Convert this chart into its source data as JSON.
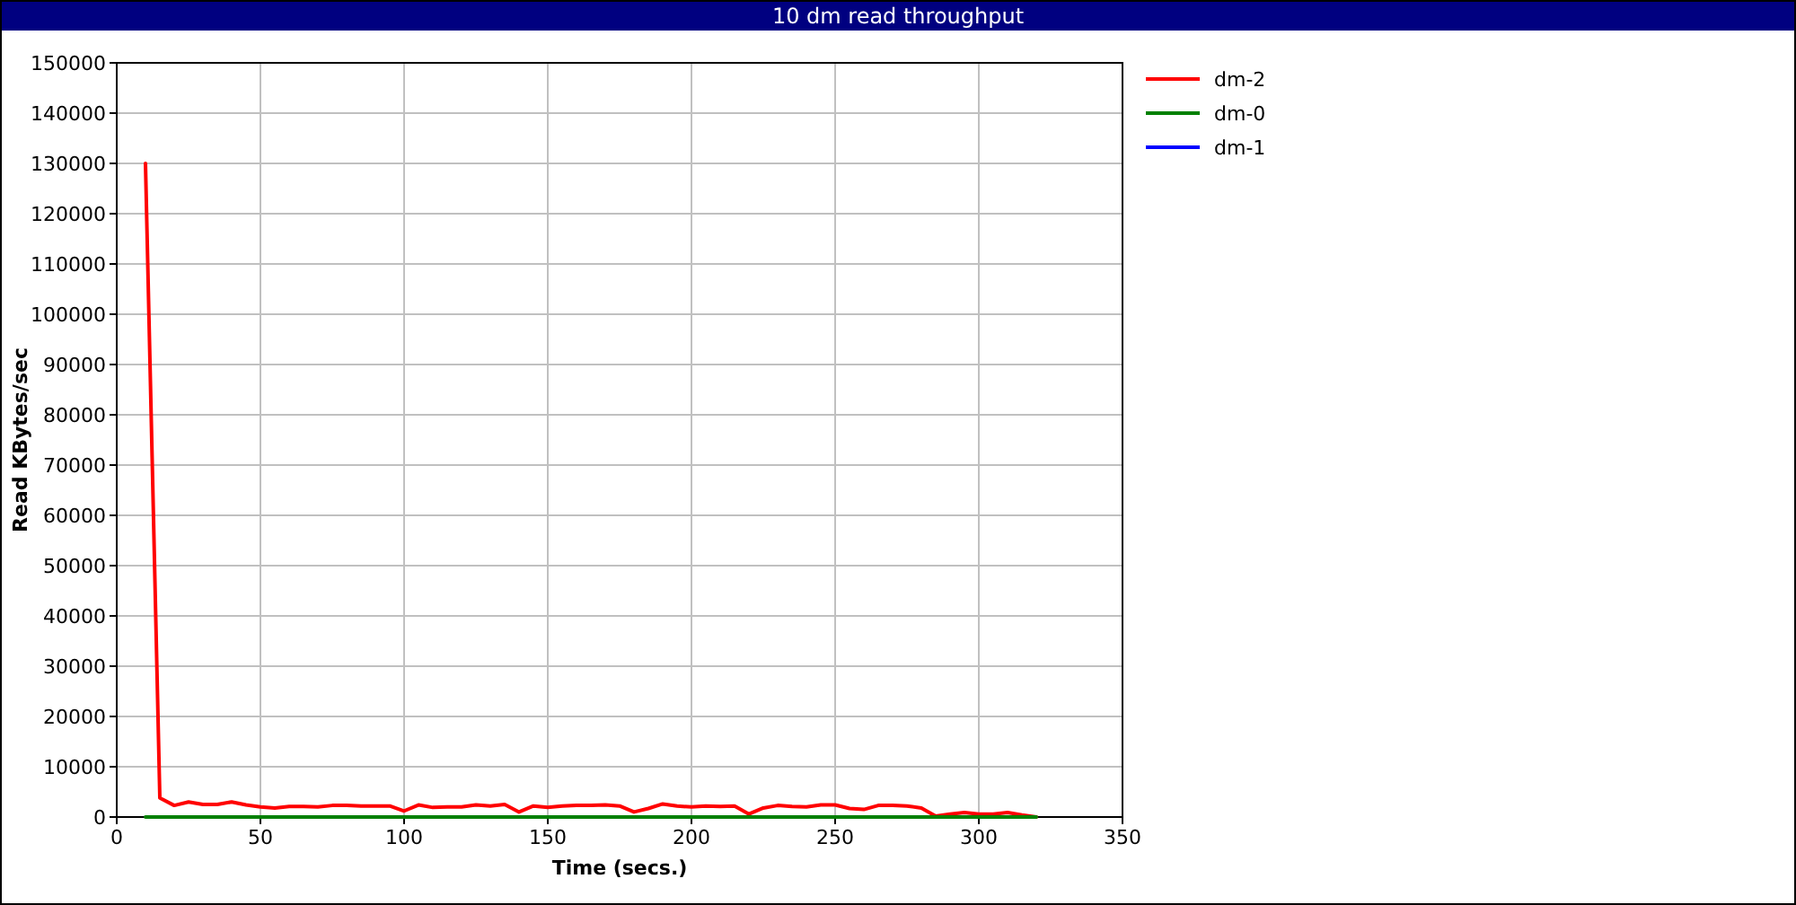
{
  "chart_data": {
    "type": "line",
    "title": "10 dm read throughput",
    "xlabel": "Time (secs.)",
    "ylabel": "Read KBytes/sec",
    "x": [
      10,
      15,
      20,
      25,
      30,
      35,
      40,
      45,
      50,
      55,
      60,
      65,
      70,
      75,
      80,
      85,
      90,
      95,
      100,
      105,
      110,
      115,
      120,
      125,
      130,
      135,
      140,
      145,
      150,
      155,
      160,
      165,
      170,
      175,
      180,
      185,
      190,
      195,
      200,
      205,
      210,
      215,
      220,
      225,
      230,
      235,
      240,
      245,
      250,
      255,
      260,
      265,
      270,
      275,
      280,
      285,
      290,
      295,
      300,
      305,
      310,
      315,
      320
    ],
    "series": [
      {
        "name": "dm-2",
        "color": "#ff0000",
        "values": [
          130000,
          3800,
          2300,
          3000,
          2500,
          2500,
          3000,
          2400,
          2000,
          1800,
          2100,
          2100,
          2000,
          2300,
          2300,
          2200,
          2200,
          2200,
          1200,
          2400,
          1900,
          2000,
          2000,
          2400,
          2200,
          2500,
          1000,
          2200,
          1900,
          2200,
          2300,
          2300,
          2400,
          2200,
          1000,
          1700,
          2600,
          2200,
          2000,
          2200,
          2100,
          2200,
          600,
          1800,
          2300,
          2100,
          2000,
          2400,
          2400,
          1700,
          1500,
          2300,
          2300,
          2200,
          1800,
          200,
          600,
          900,
          600,
          600,
          900,
          400,
          0
        ]
      },
      {
        "name": "dm-0",
        "color": "#008000",
        "values": [
          0,
          0,
          0,
          0,
          0,
          0,
          0,
          0,
          0,
          0,
          0,
          0,
          0,
          0,
          0,
          0,
          0,
          0,
          0,
          0,
          0,
          0,
          0,
          0,
          0,
          0,
          0,
          0,
          0,
          0,
          0,
          0,
          0,
          0,
          0,
          0,
          0,
          0,
          0,
          0,
          0,
          0,
          0,
          0,
          0,
          0,
          0,
          0,
          0,
          0,
          0,
          0,
          0,
          0,
          0,
          0,
          0,
          0,
          0,
          0,
          0,
          0,
          0
        ]
      },
      {
        "name": "dm-1",
        "color": "#0000ff",
        "values": [
          null,
          null,
          null,
          null,
          null,
          null,
          null,
          null,
          null,
          null,
          null,
          null,
          null,
          null,
          null,
          null,
          null,
          null,
          null,
          null,
          null,
          null,
          null,
          null,
          null,
          null,
          null,
          null,
          null,
          null,
          null,
          null,
          null,
          null,
          null,
          null,
          null,
          null,
          null,
          null,
          null,
          null,
          null,
          null,
          null,
          null,
          null,
          null,
          null,
          null,
          null,
          null,
          null,
          null,
          null,
          null,
          null,
          null,
          null,
          null,
          null,
          null,
          null
        ]
      }
    ],
    "xlim": [
      0,
      350
    ],
    "xticks": [
      0,
      50,
      100,
      150,
      200,
      250,
      300,
      350
    ],
    "ylim": [
      0,
      150000
    ],
    "yticks": [
      0,
      10000,
      20000,
      30000,
      40000,
      50000,
      60000,
      70000,
      80000,
      90000,
      100000,
      110000,
      120000,
      130000,
      140000,
      150000
    ],
    "grid": true,
    "legend": "top right",
    "marker": "none",
    "line_style": "solid"
  }
}
